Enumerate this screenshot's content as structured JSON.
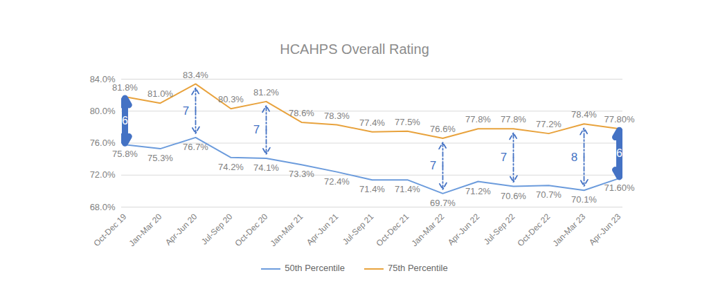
{
  "chart_data": {
    "type": "line",
    "title": "HCAHPS Overall Rating",
    "categories": [
      "Oct-Dec 19",
      "Jan-Mar 20",
      "Apr-Jun 20",
      "Jul-Sep 20",
      "Oct-Dec 20",
      "Jan-Mar 21",
      "Apr-Jun 21",
      "Jul-Sep 21",
      "Oct-Dec 21",
      "Jan-Mar 22",
      "Apr-Jun 22",
      "Jul-Sep 22",
      "Oct-Dec 22",
      "Jan-Mar 23",
      "Apr-Jun 23"
    ],
    "series": [
      {
        "name": "50th Percentile",
        "color": "#6b9bdc",
        "values": [
          75.8,
          75.3,
          76.7,
          74.2,
          74.1,
          73.3,
          72.4,
          71.4,
          71.4,
          69.7,
          71.2,
          70.6,
          70.7,
          70.1,
          71.6
        ],
        "value_labels": [
          "75.8%",
          "75.3%",
          "76.7%",
          "74.2%",
          "74.1%",
          "73.3%",
          "72.4%",
          "71.4%",
          "71.4%",
          "69.7%",
          "71.2%",
          "70.6%",
          "70.7%",
          "70.1%",
          "71.60%"
        ]
      },
      {
        "name": "75th Percentile",
        "color": "#e8a23c",
        "values": [
          81.8,
          81.0,
          83.4,
          80.3,
          81.2,
          78.6,
          78.3,
          77.4,
          77.5,
          76.6,
          77.8,
          77.8,
          77.2,
          78.4,
          77.8
        ],
        "value_labels": [
          "81.8%",
          "81.0%",
          "83.4%",
          "80.3%",
          "81.2%",
          "78.6%",
          "78.3%",
          "77.4%",
          "77.5%",
          "76.6%",
          "77.8%",
          "77.8%",
          "77.2%",
          "78.4%",
          "77.80%"
        ]
      }
    ],
    "annotations": [
      {
        "x": "Oct-Dec 19",
        "text": "6",
        "line_style": "solid"
      },
      {
        "x": "Apr-Jun 20",
        "text": "7",
        "line_style": "dashed"
      },
      {
        "x": "Oct-Dec 20",
        "text": "7",
        "line_style": "dashed"
      },
      {
        "x": "Jan-Mar 22",
        "text": "7",
        "line_style": "dashed"
      },
      {
        "x": "Jul-Sep 22",
        "text": "7",
        "line_style": "dashed"
      },
      {
        "x": "Jan-Mar 23",
        "text": "8",
        "line_style": "dashed"
      },
      {
        "x": "Apr-Jun 23",
        "text": "6",
        "line_style": "solid"
      }
    ],
    "ylim": [
      68,
      84
    ],
    "yticks": [
      {
        "value": 68,
        "label": "68.0%"
      },
      {
        "value": 72,
        "label": "72.0%"
      },
      {
        "value": 76,
        "label": "76.0%"
      },
      {
        "value": 80,
        "label": "80.0%"
      },
      {
        "value": 84,
        "label": "84.0%"
      }
    ],
    "grid": true,
    "data_labels": true,
    "legend": "bottom"
  }
}
